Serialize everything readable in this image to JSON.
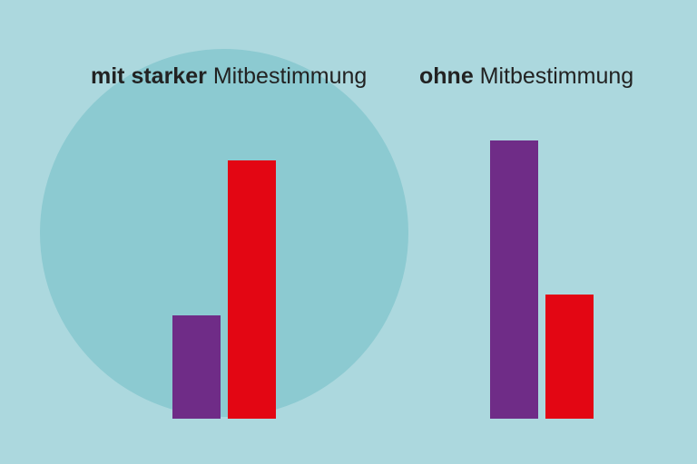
{
  "chart_data": {
    "type": "bar",
    "categories": [
      {
        "emphasis": "mit starker",
        "text": "Mitbestimmung"
      },
      {
        "emphasis": "ohne",
        "text": "Mitbestimmung"
      }
    ],
    "series": [
      {
        "color": "#6f2c87",
        "values": [
          114,
          307
        ]
      },
      {
        "color": "#e30613",
        "values": [
          285,
          137
        ]
      }
    ],
    "ylim": [
      0,
      310
    ]
  }
}
